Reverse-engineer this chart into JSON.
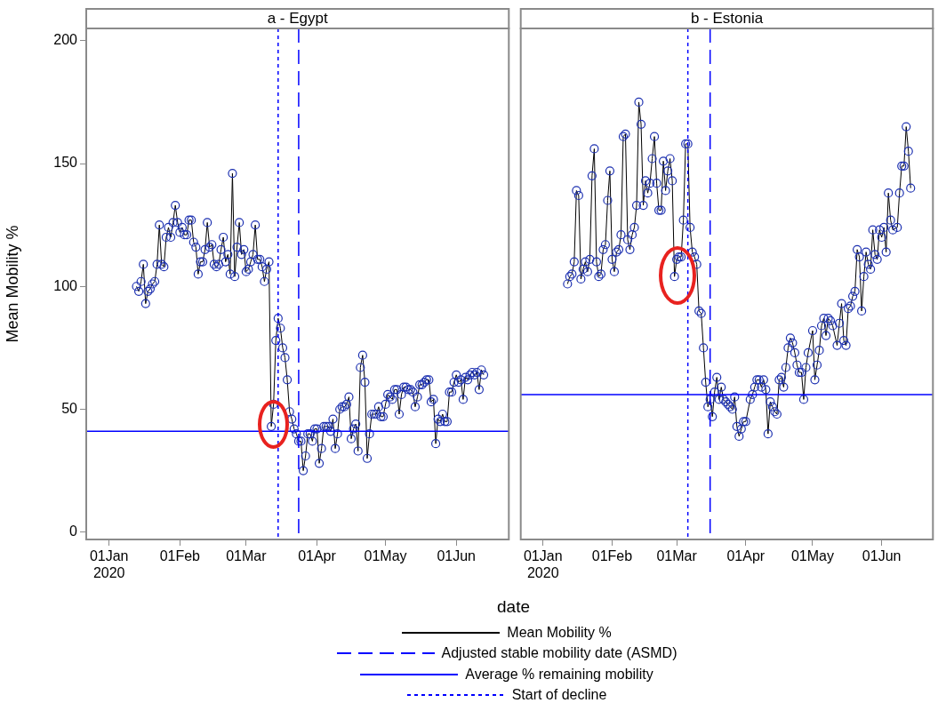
{
  "chart_data": [
    {
      "type": "line",
      "title": "a - Egypt",
      "ylabel": "Mean Mobility %",
      "xlabel": "date",
      "legend": "bottom",
      "marker": "circle",
      "xlim": [
        "2019-12-22",
        "2020-06-24"
      ],
      "xticks": [
        {
          "value": "2020-01-01",
          "label": "01Jan 2020"
        },
        {
          "value": "2020-02-01",
          "label": "01Feb"
        },
        {
          "value": "2020-03-01",
          "label": "01Mar"
        },
        {
          "value": "2020-04-01",
          "label": "01Apr"
        },
        {
          "value": "2020-05-01",
          "label": "01May"
        },
        {
          "value": "2020-06-01",
          "label": "01Jun"
        }
      ],
      "ylim": [
        -3,
        205
      ],
      "yticks": [
        0,
        50,
        100,
        150,
        200
      ],
      "series": [
        {
          "name": "Mean Mobility %",
          "color": "#000000",
          "x": [
            "2020-01-13",
            "2020-01-14",
            "2020-01-15",
            "2020-01-16",
            "2020-01-17",
            "2020-01-18",
            "2020-01-19",
            "2020-01-20",
            "2020-01-21",
            "2020-01-22",
            "2020-01-23",
            "2020-01-24",
            "2020-01-25",
            "2020-01-26",
            "2020-01-27",
            "2020-01-28",
            "2020-01-29",
            "2020-01-30",
            "2020-01-31",
            "2020-02-01",
            "2020-02-02",
            "2020-02-03",
            "2020-02-04",
            "2020-02-05",
            "2020-02-06",
            "2020-02-07",
            "2020-02-08",
            "2020-02-09",
            "2020-02-10",
            "2020-02-11",
            "2020-02-12",
            "2020-02-13",
            "2020-02-14",
            "2020-02-15",
            "2020-02-16",
            "2020-02-17",
            "2020-02-18",
            "2020-02-19",
            "2020-02-20",
            "2020-02-21",
            "2020-02-22",
            "2020-02-23",
            "2020-02-24",
            "2020-02-25",
            "2020-02-26",
            "2020-02-27",
            "2020-02-28",
            "2020-02-29",
            "2020-03-01",
            "2020-03-02",
            "2020-03-03",
            "2020-03-04",
            "2020-03-05",
            "2020-03-06",
            "2020-03-07",
            "2020-03-08",
            "2020-03-09",
            "2020-03-10",
            "2020-03-11",
            "2020-03-12",
            "2020-03-13",
            "2020-03-14",
            "2020-03-15",
            "2020-03-16",
            "2020-03-17",
            "2020-03-18",
            "2020-03-19",
            "2020-03-20",
            "2020-03-21",
            "2020-03-22",
            "2020-03-23",
            "2020-03-24",
            "2020-03-25",
            "2020-03-26",
            "2020-03-27",
            "2020-03-28",
            "2020-03-29",
            "2020-03-30",
            "2020-03-31",
            "2020-04-01",
            "2020-04-02",
            "2020-04-03",
            "2020-04-04",
            "2020-04-05",
            "2020-04-06",
            "2020-04-07",
            "2020-04-08",
            "2020-04-09",
            "2020-04-10",
            "2020-04-11",
            "2020-04-12",
            "2020-04-13",
            "2020-04-14",
            "2020-04-15",
            "2020-04-16",
            "2020-04-17",
            "2020-04-18",
            "2020-04-19",
            "2020-04-20",
            "2020-04-21",
            "2020-04-22",
            "2020-04-23",
            "2020-04-24",
            "2020-04-25",
            "2020-04-26",
            "2020-04-27",
            "2020-04-28",
            "2020-04-29",
            "2020-04-30",
            "2020-05-01",
            "2020-05-02",
            "2020-05-03",
            "2020-05-04",
            "2020-05-05",
            "2020-05-06",
            "2020-05-07",
            "2020-05-08",
            "2020-05-09",
            "2020-05-10",
            "2020-05-11",
            "2020-05-12",
            "2020-05-13",
            "2020-05-14",
            "2020-05-15",
            "2020-05-16",
            "2020-05-17",
            "2020-05-18",
            "2020-05-19",
            "2020-05-20",
            "2020-05-21",
            "2020-05-22",
            "2020-05-23",
            "2020-05-24",
            "2020-05-25",
            "2020-05-26",
            "2020-05-27",
            "2020-05-28",
            "2020-05-29",
            "2020-05-30",
            "2020-05-31",
            "2020-06-01",
            "2020-06-02",
            "2020-06-03",
            "2020-06-04",
            "2020-06-05",
            "2020-06-06",
            "2020-06-07",
            "2020-06-08",
            "2020-06-09",
            "2020-06-10",
            "2020-06-11",
            "2020-06-12",
            "2020-06-13"
          ],
          "values": [
            100,
            98,
            102,
            109,
            93,
            98,
            99,
            101,
            102,
            109,
            125,
            109,
            108,
            120,
            124,
            120,
            126,
            133,
            126,
            122,
            124,
            121,
            121,
            127,
            127,
            118,
            116,
            105,
            110,
            110,
            115,
            126,
            116,
            117,
            109,
            108,
            109,
            115,
            120,
            110,
            113,
            105,
            146,
            104,
            116,
            126,
            113,
            115,
            106,
            107,
            110,
            113,
            125,
            111,
            111,
            108,
            102,
            107,
            110,
            43,
            52,
            78,
            87,
            83,
            75,
            71,
            62,
            49,
            46,
            42,
            40,
            37,
            37,
            25,
            31,
            40,
            40,
            37,
            42,
            42,
            28,
            34,
            43,
            43,
            43,
            41,
            46,
            34,
            40,
            50,
            51,
            51,
            52,
            55,
            38,
            42,
            44,
            33,
            67,
            72,
            61,
            30,
            40,
            48,
            48,
            48,
            51,
            47,
            47,
            52,
            56,
            55,
            54,
            58,
            58,
            48,
            56,
            59,
            59,
            58,
            58,
            57,
            51,
            55,
            60,
            60,
            61,
            62,
            62,
            53,
            54,
            36,
            46,
            45,
            48,
            45,
            45,
            57,
            57,
            61,
            64,
            61,
            62,
            54,
            63,
            62,
            64,
            65,
            64,
            65,
            58,
            66,
            64
          ]
        }
      ],
      "ref_lines": [
        {
          "axis": "x",
          "value": "2020-03-24",
          "label": "Adjusted stable mobility date (ASMD)",
          "color": "#0000ff",
          "line_style": "dashed"
        },
        {
          "axis": "y",
          "value": 41,
          "label": "Average % remaining mobility",
          "color": "#0000ff",
          "line_style": "solid"
        },
        {
          "axis": "x",
          "value": "2020-03-15",
          "label": "Start of decline",
          "color": "#0000ff",
          "line_style": "dotted"
        }
      ]
    },
    {
      "type": "line",
      "title": "b - Estonia",
      "marker": "circle",
      "tick_labels": "x",
      "xlim": [
        "2019-12-22",
        "2020-06-24"
      ],
      "xticks": [
        {
          "value": "2020-01-01",
          "label": "01Jan 2020"
        },
        {
          "value": "2020-02-01",
          "label": "01Feb"
        },
        {
          "value": "2020-03-01",
          "label": "01Mar"
        },
        {
          "value": "2020-04-01",
          "label": "01Apr"
        },
        {
          "value": "2020-05-01",
          "label": "01May"
        },
        {
          "value": "2020-06-01",
          "label": "01Jun"
        }
      ],
      "ylim": [
        -3,
        205
      ],
      "series": [
        {
          "color": "#000000",
          "x": [
            "2020-01-12",
            "2020-01-13",
            "2020-01-14",
            "2020-01-15",
            "2020-01-16",
            "2020-01-17",
            "2020-01-18",
            "2020-01-19",
            "2020-01-20",
            "2020-01-21",
            "2020-01-22",
            "2020-01-23",
            "2020-01-24",
            "2020-01-25",
            "2020-01-26",
            "2020-01-27",
            "2020-01-28",
            "2020-01-29",
            "2020-01-30",
            "2020-01-31",
            "2020-02-01",
            "2020-02-02",
            "2020-02-03",
            "2020-02-04",
            "2020-02-05",
            "2020-02-06",
            "2020-02-07",
            "2020-02-08",
            "2020-02-09",
            "2020-02-10",
            "2020-02-11",
            "2020-02-12",
            "2020-02-13",
            "2020-02-14",
            "2020-02-15",
            "2020-02-16",
            "2020-02-17",
            "2020-02-18",
            "2020-02-19",
            "2020-02-20",
            "2020-02-21",
            "2020-02-22",
            "2020-02-23",
            "2020-02-24",
            "2020-02-25",
            "2020-02-26",
            "2020-02-27",
            "2020-02-28",
            "2020-02-29",
            "2020-03-01",
            "2020-03-02",
            "2020-03-03",
            "2020-03-04",
            "2020-03-05",
            "2020-03-06",
            "2020-03-07",
            "2020-03-08",
            "2020-03-09",
            "2020-03-10",
            "2020-03-11",
            "2020-03-12",
            "2020-03-13",
            "2020-03-14",
            "2020-03-15",
            "2020-03-16",
            "2020-03-17",
            "2020-03-18",
            "2020-03-19",
            "2020-03-20",
            "2020-03-21",
            "2020-03-22",
            "2020-03-23",
            "2020-03-24",
            "2020-03-25",
            "2020-03-26",
            "2020-03-27",
            "2020-03-28",
            "2020-03-29",
            "2020-03-30",
            "2020-03-31",
            "2020-04-01",
            "2020-04-03",
            "2020-04-04",
            "2020-04-05",
            "2020-04-06",
            "2020-04-07",
            "2020-04-08",
            "2020-04-09",
            "2020-04-10",
            "2020-04-11",
            "2020-04-12",
            "2020-04-13",
            "2020-04-14",
            "2020-04-15",
            "2020-04-16",
            "2020-04-17",
            "2020-04-18",
            "2020-04-19",
            "2020-04-20",
            "2020-04-21",
            "2020-04-22",
            "2020-04-23",
            "2020-04-24",
            "2020-04-25",
            "2020-04-26",
            "2020-04-27",
            "2020-04-28",
            "2020-04-29",
            "2020-05-01",
            "2020-05-02",
            "2020-05-03",
            "2020-05-04",
            "2020-05-05",
            "2020-05-06",
            "2020-05-07",
            "2020-05-08",
            "2020-05-09",
            "2020-05-10",
            "2020-05-12",
            "2020-05-13",
            "2020-05-14",
            "2020-05-15",
            "2020-05-16",
            "2020-05-17",
            "2020-05-18",
            "2020-05-19",
            "2020-05-20",
            "2020-05-21",
            "2020-05-22",
            "2020-05-23",
            "2020-05-24",
            "2020-05-25",
            "2020-05-26",
            "2020-05-27",
            "2020-05-28",
            "2020-05-29",
            "2020-05-30",
            "2020-05-31",
            "2020-06-01",
            "2020-06-02",
            "2020-06-03",
            "2020-06-04",
            "2020-06-05",
            "2020-06-06",
            "2020-06-08",
            "2020-06-09",
            "2020-06-10",
            "2020-06-11",
            "2020-06-12",
            "2020-06-13",
            "2020-06-14"
          ],
          "values": [
            101,
            104,
            105,
            110,
            139,
            137,
            103,
            107,
            110,
            106,
            111,
            145,
            156,
            110,
            104,
            105,
            115,
            117,
            135,
            147,
            111,
            106,
            114,
            115,
            121,
            161,
            162,
            119,
            115,
            121,
            124,
            133,
            175,
            166,
            133,
            143,
            138,
            142,
            152,
            161,
            142,
            131,
            131,
            151,
            139,
            147,
            152,
            143,
            104,
            111,
            112,
            112,
            127,
            158,
            158,
            124,
            114,
            112,
            109,
            90,
            89,
            75,
            61,
            51,
            54,
            47,
            57,
            63,
            54,
            59,
            54,
            53,
            52,
            51,
            50,
            55,
            43,
            39,
            42,
            45,
            45,
            54,
            56,
            59,
            62,
            62,
            59,
            62,
            58,
            40,
            53,
            51,
            49,
            48,
            62,
            63,
            59,
            67,
            75,
            79,
            77,
            73,
            68,
            65,
            65,
            54,
            67,
            73,
            82,
            62,
            68,
            74,
            84,
            87,
            80,
            87,
            86,
            84,
            76,
            85,
            93,
            78,
            76,
            91,
            92,
            96,
            98,
            115,
            112,
            90,
            104,
            114,
            109,
            107,
            123,
            113,
            111,
            123,
            120,
            124,
            114,
            138,
            127,
            123,
            124,
            138,
            149,
            149,
            165,
            155,
            140
          ]
        }
      ],
      "ref_lines": [
        {
          "axis": "x",
          "value": "2020-03-16",
          "color": "#0000ff",
          "line_style": "dashed"
        },
        {
          "axis": "y",
          "value": 56,
          "color": "#0000ff",
          "line_style": "solid"
        },
        {
          "axis": "x",
          "value": "2020-03-06",
          "color": "#0000ff",
          "line_style": "dotted"
        }
      ]
    }
  ]
}
